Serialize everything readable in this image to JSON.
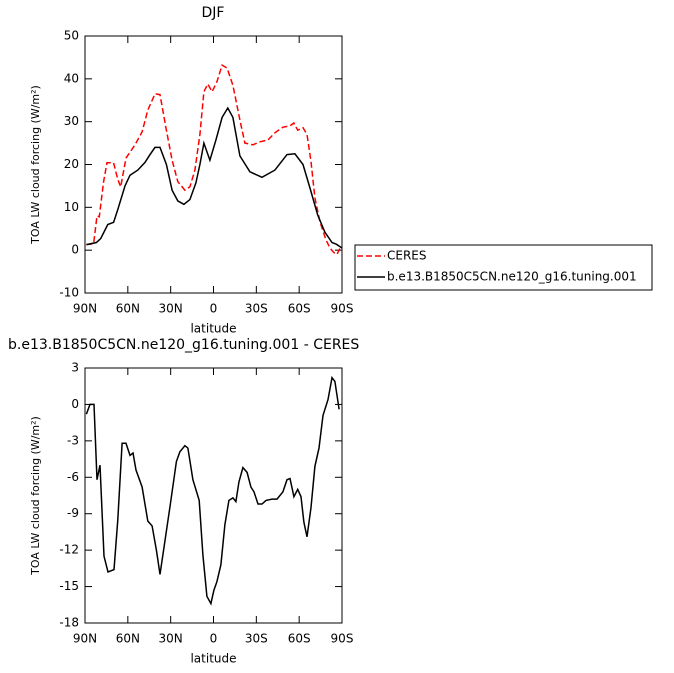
{
  "chart_data": [
    {
      "type": "line",
      "title": "DJF",
      "x_label": "latitude",
      "y_label": "TOA LW cloud forcing (W/m²)",
      "xlim": [
        90,
        -90
      ],
      "xticks": [
        {
          "value": 90,
          "label": "90N"
        },
        {
          "value": 60,
          "label": "60N"
        },
        {
          "value": 30,
          "label": "30N"
        },
        0,
        {
          "value": -30,
          "label": "30S"
        },
        {
          "value": -60,
          "label": "60S"
        },
        {
          "value": -90,
          "label": "90S"
        }
      ],
      "ylim": [
        -10,
        50
      ],
      "yticks": [
        -10,
        0,
        10,
        20,
        30,
        40,
        50
      ],
      "legend": "outside right",
      "series": [
        {
          "name": "CERES",
          "color": "#ff0000",
          "dash": true,
          "x": [
            89,
            84,
            81.6,
            80,
            77,
            74.6,
            70,
            67,
            65,
            61.3,
            55,
            50,
            46,
            41,
            37.5,
            33,
            29,
            25,
            20,
            16.5,
            13,
            9.5,
            6.7,
            4,
            1,
            -2.4,
            -6,
            -9.5,
            -13.6,
            -18.5,
            -22,
            -27.6,
            -32.5,
            -38,
            -43,
            -48.6,
            -53.5,
            -56.3,
            -59,
            -62.7,
            -65.5,
            -68.3,
            -71,
            -74.6,
            -78.8,
            -81.6,
            -84.4,
            -86.5,
            -88.7,
            -90
          ],
          "values": [
            1.3,
            1.5,
            8,
            7.8,
            16,
            20.4,
            20.4,
            16.5,
            14.8,
            21.5,
            24.6,
            27.6,
            32.7,
            36.5,
            36.3,
            28,
            21,
            16,
            14,
            14.8,
            18.7,
            27,
            37,
            38.8,
            37,
            39.3,
            43.2,
            42.5,
            38.5,
            30.4,
            25,
            24.6,
            25.3,
            25.7,
            27.4,
            28.7,
            29,
            29.7,
            28,
            28.6,
            27,
            20.7,
            12.2,
            6.6,
            2.4,
            0.5,
            -0.6,
            -1,
            0.5,
            0
          ]
        },
        {
          "name": "b.e13.B1850C5CN.ne120_g16.tuning.001",
          "color": "#000000",
          "dash": false,
          "x": [
            89,
            82,
            79,
            74,
            70,
            67,
            62,
            58.5,
            53,
            48,
            44.5,
            41,
            37.5,
            33,
            29,
            25,
            20.7,
            16.5,
            12.3,
            9.5,
            6.7,
            2.5,
            -1.7,
            -6,
            -10,
            -13.6,
            -18.5,
            -25.5,
            -34,
            -43,
            -51.5,
            -57,
            -62.7,
            -67.6,
            -73,
            -78,
            -83,
            -86,
            -90
          ],
          "values": [
            1.3,
            1.8,
            2.7,
            6,
            6.5,
            9.5,
            15,
            17.5,
            18.7,
            20.5,
            22.3,
            24,
            24,
            20,
            14,
            11.5,
            10.7,
            11.8,
            15.7,
            20,
            25,
            21,
            25.7,
            31,
            33.2,
            31,
            22,
            18.3,
            17,
            18.7,
            22.3,
            22.5,
            20,
            14.5,
            8.2,
            4.2,
            1.8,
            1.4,
            0.5
          ]
        }
      ]
    },
    {
      "type": "line",
      "title": "b.e13.B1850C5CN.ne120_g16.tuning.001 - CERES",
      "x_label": "latitude",
      "y_label": "TOA LW cloud forcing (W/m²)",
      "xlim": [
        90,
        -90
      ],
      "xticks": [
        {
          "value": 90,
          "label": "90N"
        },
        {
          "value": 60,
          "label": "60N"
        },
        {
          "value": 30,
          "label": "30N"
        },
        0,
        {
          "value": -30,
          "label": "30S"
        },
        {
          "value": -60,
          "label": "60S"
        },
        {
          "value": -90,
          "label": "90S"
        }
      ],
      "ylim": [
        -18,
        3
      ],
      "yticks": [
        -18,
        -15,
        -12,
        -9,
        -6,
        -3,
        0,
        3
      ],
      "color": "#000000",
      "x": [
        89,
        86.5,
        83.7,
        81.6,
        79.5,
        76.7,
        73.9,
        69.7,
        67,
        64,
        61.3,
        58.5,
        56.4,
        54.3,
        50,
        46,
        43,
        40,
        37.5,
        33.8,
        30.3,
        26,
        23.5,
        20,
        17.9,
        14.4,
        10,
        7.4,
        4.6,
        1.8,
        -0.3,
        -2.4,
        -5.2,
        -8,
        -10.8,
        -13.6,
        -15.7,
        -17.8,
        -20.6,
        -23.5,
        -26.2,
        -28.4,
        -31.2,
        -34,
        -36.8,
        -41,
        -44.5,
        -48.6,
        -51.5,
        -53.6,
        -56.3,
        -59,
        -61.3,
        -63.3,
        -65.5,
        -68.3,
        -71,
        -73.9,
        -76.7,
        -80.2,
        -83,
        -85,
        -88
      ],
      "values": [
        -0.8,
        0,
        0,
        -6.2,
        -5,
        -12.5,
        -13.8,
        -13.6,
        -9.5,
        -3.2,
        -3.2,
        -4.2,
        -4,
        -5.4,
        -6.8,
        -9.6,
        -10,
        -12,
        -14,
        -11.1,
        -8.3,
        -4.7,
        -3.9,
        -3.4,
        -3.6,
        -6.2,
        -7.9,
        -12.4,
        -15.8,
        -16.4,
        -15.3,
        -14.6,
        -13.2,
        -9.9,
        -7.9,
        -7.7,
        -8,
        -6.4,
        -5.2,
        -5.6,
        -6.8,
        -7.2,
        -8.2,
        -8.2,
        -7.9,
        -7.8,
        -7.8,
        -7.2,
        -6.2,
        -6.1,
        -7.6,
        -7,
        -7.6,
        -9.7,
        -10.9,
        -8.5,
        -5.1,
        -3.6,
        -0.9,
        0.4,
        2.2,
        1.9,
        -0.4
      ]
    }
  ]
}
